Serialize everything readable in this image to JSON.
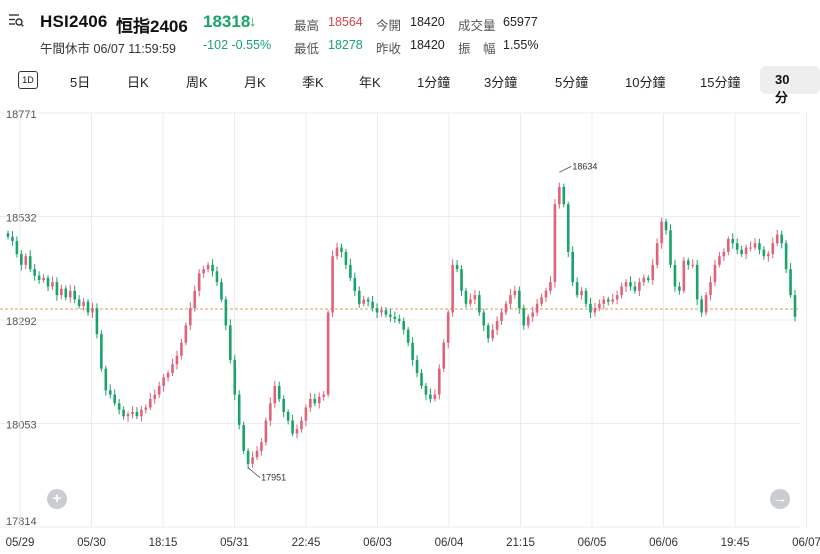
{
  "header": {
    "menu_icon": "list-search-icon",
    "symbol": "HSI2406",
    "name": "恒指2406",
    "price": "18318",
    "price_arrow": "↓",
    "status": "午間休市",
    "datetime": "06/07 11:59:59",
    "change": "-102 -0.55%",
    "stats": {
      "high_label": "最高",
      "high": "18564",
      "open_label": "今開",
      "open": "18420",
      "volume_label": "成交量",
      "volume": "65977",
      "low_label": "最低",
      "low": "18278",
      "prev_close_label": "昨收",
      "prev_close": "18420",
      "amplitude_label": "振　幅",
      "amplitude": "1.55%"
    }
  },
  "tabs": {
    "icon_1d": "1D",
    "items": [
      "5日",
      "日K",
      "周K",
      "月K",
      "季K",
      "年K",
      "1分鐘",
      "3分鐘",
      "5分鐘",
      "10分鐘",
      "15分鐘"
    ],
    "active": "30分"
  },
  "colors": {
    "up": "#e0637a",
    "down": "#1aa36b",
    "ref_line": "#d9a05b"
  },
  "chart_data": {
    "type": "candlestick",
    "y_ticks": [
      "18771",
      "18532",
      "18292",
      "18053",
      "17814"
    ],
    "ylim": [
      17814,
      18771
    ],
    "x_ticks": [
      "05/29",
      "05/30",
      "18:15",
      "05/31",
      "22:45",
      "06/03",
      "06/04",
      "21:15",
      "06/05",
      "06/06",
      "19:45",
      "06/07"
    ],
    "reference_price": 18318,
    "annotations": [
      {
        "text": "18634",
        "value": 18634
      },
      {
        "text": "17951",
        "value": 17951
      }
    ],
    "closes": [
      18485,
      18475,
      18445,
      18420,
      18440,
      18410,
      18395,
      18385,
      18390,
      18370,
      18380,
      18350,
      18365,
      18345,
      18360,
      18340,
      18325,
      18335,
      18310,
      18320,
      18260,
      18180,
      18130,
      18120,
      18100,
      18085,
      18070,
      18075,
      18080,
      18070,
      18085,
      18090,
      18110,
      18120,
      18140,
      18160,
      18170,
      18190,
      18210,
      18240,
      18280,
      18320,
      18360,
      18400,
      18410,
      18420,
      18405,
      18380,
      18340,
      18280,
      18200,
      18120,
      18050,
      17990,
      17960,
      17975,
      17990,
      18010,
      18060,
      18100,
      18140,
      18110,
      18080,
      18060,
      18030,
      18040,
      18060,
      18090,
      18110,
      18100,
      18115,
      18120,
      18310,
      18440,
      18460,
      18450,
      18420,
      18390,
      18360,
      18330,
      18340,
      18335,
      18320,
      18310,
      18315,
      18305,
      18300,
      18295,
      18290,
      18270,
      18240,
      18200,
      18170,
      18140,
      18120,
      18110,
      18120,
      18180,
      18240,
      18310,
      18420,
      18410,
      18360,
      18330,
      18340,
      18350,
      18310,
      18280,
      18250,
      18270,
      18290,
      18310,
      18330,
      18350,
      18360,
      18320,
      18280,
      18300,
      18310,
      18330,
      18345,
      18360,
      18380,
      18560,
      18600,
      18560,
      18450,
      18380,
      18350,
      18360,
      18330,
      18310,
      18320,
      18330,
      18340,
      18335,
      18340,
      18350,
      18370,
      18380,
      18370,
      18360,
      18380,
      18390,
      18385,
      18420,
      18470,
      18520,
      18500,
      18420,
      18370,
      18360,
      18430,
      18420,
      18420,
      18340,
      18310,
      18350,
      18380,
      18420,
      18440,
      18450,
      18480,
      18470,
      18455,
      18445,
      18460,
      18460,
      18470,
      18455,
      18440,
      18445,
      18470,
      18490,
      18470,
      18410,
      18350,
      18300
    ]
  }
}
